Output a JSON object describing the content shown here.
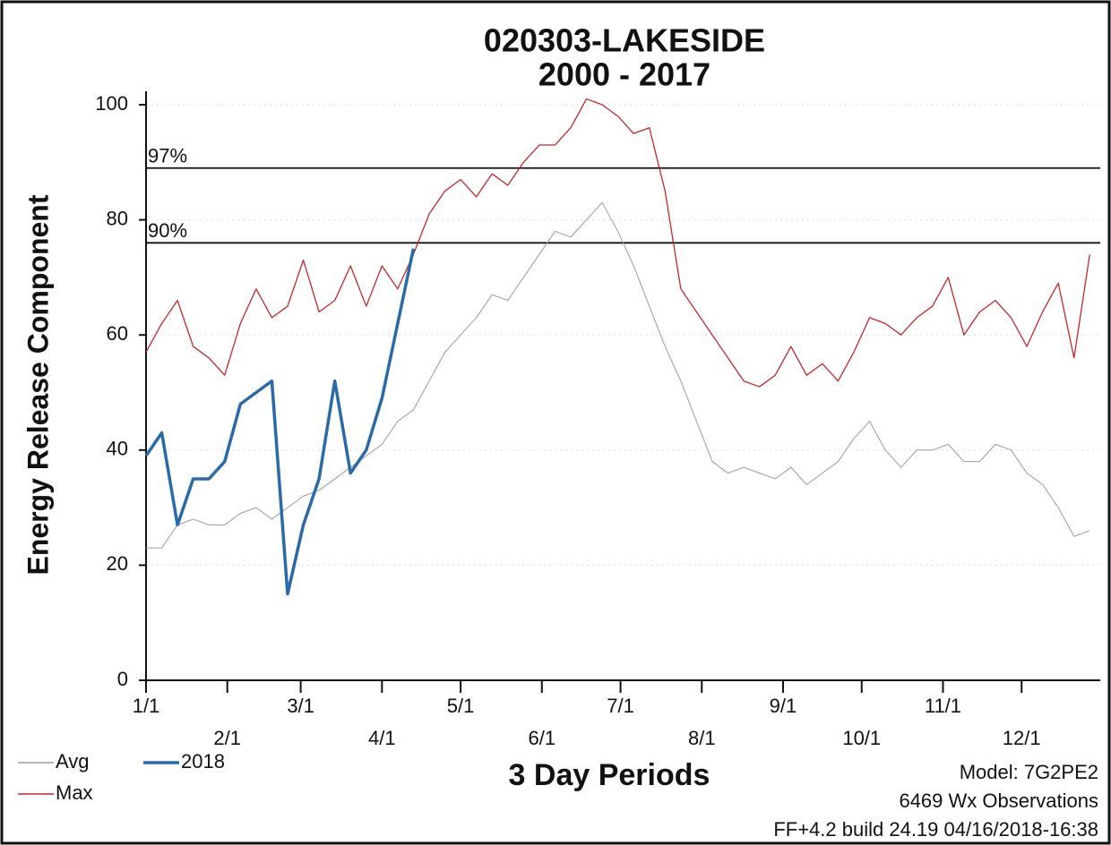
{
  "chart_data": {
    "type": "line",
    "title": "020303-LAKESIDE",
    "subtitle": "2000 - 2017",
    "x_label": "3 Day Periods",
    "y_label": "Energy Release Component",
    "x": [
      1,
      7,
      13,
      19,
      25,
      31,
      37,
      43,
      49,
      55,
      61,
      67,
      73,
      79,
      85,
      91,
      97,
      103,
      109,
      115,
      121,
      127,
      133,
      139,
      145,
      151,
      157,
      163,
      169,
      175,
      181,
      187,
      193,
      199,
      205,
      211,
      217,
      223,
      229,
      235,
      241,
      247,
      253,
      259,
      265,
      271,
      277,
      283,
      289,
      295,
      301,
      307,
      313,
      319,
      325,
      331,
      337,
      343,
      349,
      355,
      361
    ],
    "series": [
      {
        "name": "Avg",
        "color": "#9a9a9a",
        "width": 1,
        "values": [
          23,
          23,
          27,
          28,
          27,
          27,
          29,
          30,
          28,
          30,
          32,
          33,
          35,
          37,
          39,
          41,
          45,
          47,
          52,
          57,
          60,
          63,
          67,
          66,
          70,
          74,
          78,
          77,
          80,
          83,
          78,
          72,
          65,
          58,
          52,
          45,
          38,
          36,
          37,
          36,
          35,
          37,
          34,
          36,
          38,
          42,
          45,
          40,
          37,
          40,
          40,
          41,
          38,
          38,
          41,
          40,
          36,
          34,
          30,
          25,
          26
        ]
      },
      {
        "name": "Max",
        "color": "#c0282c",
        "width": 1.3,
        "values": [
          57,
          62,
          66,
          58,
          56,
          53,
          62,
          68,
          63,
          65,
          73,
          64,
          66,
          72,
          65,
          72,
          68,
          74,
          81,
          85,
          87,
          84,
          88,
          86,
          90,
          93,
          93,
          96,
          101,
          100,
          98,
          95,
          96,
          85,
          68,
          64,
          60,
          56,
          52,
          51,
          53,
          58,
          53,
          55,
          52,
          57,
          63,
          62,
          60,
          63,
          65,
          70,
          60,
          64,
          66,
          63,
          58,
          64,
          69,
          56,
          74
        ]
      },
      {
        "name": "2018",
        "color": "#2a6aa8",
        "width": 3.5,
        "values": [
          39,
          43,
          27,
          35,
          35,
          38,
          48,
          50,
          52,
          15,
          27,
          35,
          52,
          36,
          40,
          49,
          62,
          75,
          null,
          null,
          null,
          null,
          null,
          null,
          null,
          null,
          null,
          null,
          null,
          null,
          null,
          null,
          null,
          null,
          null,
          null,
          null,
          null,
          null,
          null,
          null,
          null,
          null,
          null,
          null,
          null,
          null,
          null,
          null,
          null,
          null,
          null,
          null,
          null,
          null,
          null,
          null,
          null,
          null,
          null,
          null
        ]
      }
    ],
    "xlim": [
      1,
      365
    ],
    "ylim": [
      0,
      100
    ],
    "yticks": [
      0,
      20,
      40,
      60,
      80,
      100
    ],
    "xticks": [
      {
        "value": 1,
        "label": "1/1"
      },
      {
        "value": 32,
        "label": "2/1"
      },
      {
        "value": 60,
        "label": "3/1"
      },
      {
        "value": 91,
        "label": "4/1"
      },
      {
        "value": 121,
        "label": "5/1"
      },
      {
        "value": 152,
        "label": "6/1"
      },
      {
        "value": 182,
        "label": "7/1"
      },
      {
        "value": 213,
        "label": "8/1"
      },
      {
        "value": 244,
        "label": "9/1"
      },
      {
        "value": 274,
        "label": "10/1"
      },
      {
        "value": 305,
        "label": "11/1"
      },
      {
        "value": 335,
        "label": "12/1"
      }
    ],
    "reference_lines": [
      {
        "label": "97%",
        "value": 89
      },
      {
        "label": "90%",
        "value": 76
      }
    ],
    "grid": true,
    "legend": "bottom-left",
    "notes": [
      "Model: 7G2PE2",
      "6469 Wx Observations",
      "FF+4.2 build 24.19 04/16/2018-16:38"
    ]
  }
}
